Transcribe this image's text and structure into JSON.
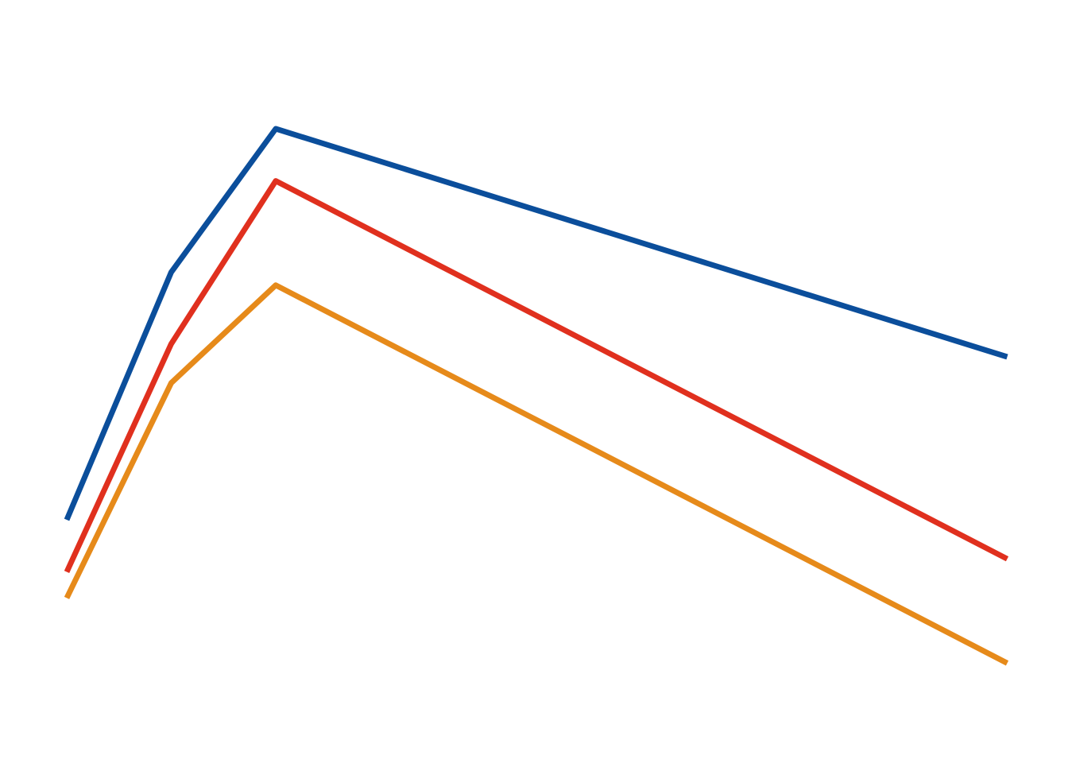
{
  "chart_data": {
    "type": "line",
    "title": "",
    "xlabel": "",
    "ylabel": "",
    "x": [
      0,
      1,
      2,
      9
    ],
    "xlim": [
      0,
      9
    ],
    "ylim": [
      0,
      100
    ],
    "grid": false,
    "legend": "none",
    "series": [
      {
        "name": "blue",
        "color": "#0B4E9B",
        "values": [
          30,
          68,
          90,
          55
        ]
      },
      {
        "name": "red",
        "color": "#E0301E",
        "values": [
          22,
          57,
          82,
          24
        ]
      },
      {
        "name": "orange",
        "color": "#E68A1A",
        "values": [
          18,
          51,
          66,
          8
        ]
      }
    ]
  }
}
